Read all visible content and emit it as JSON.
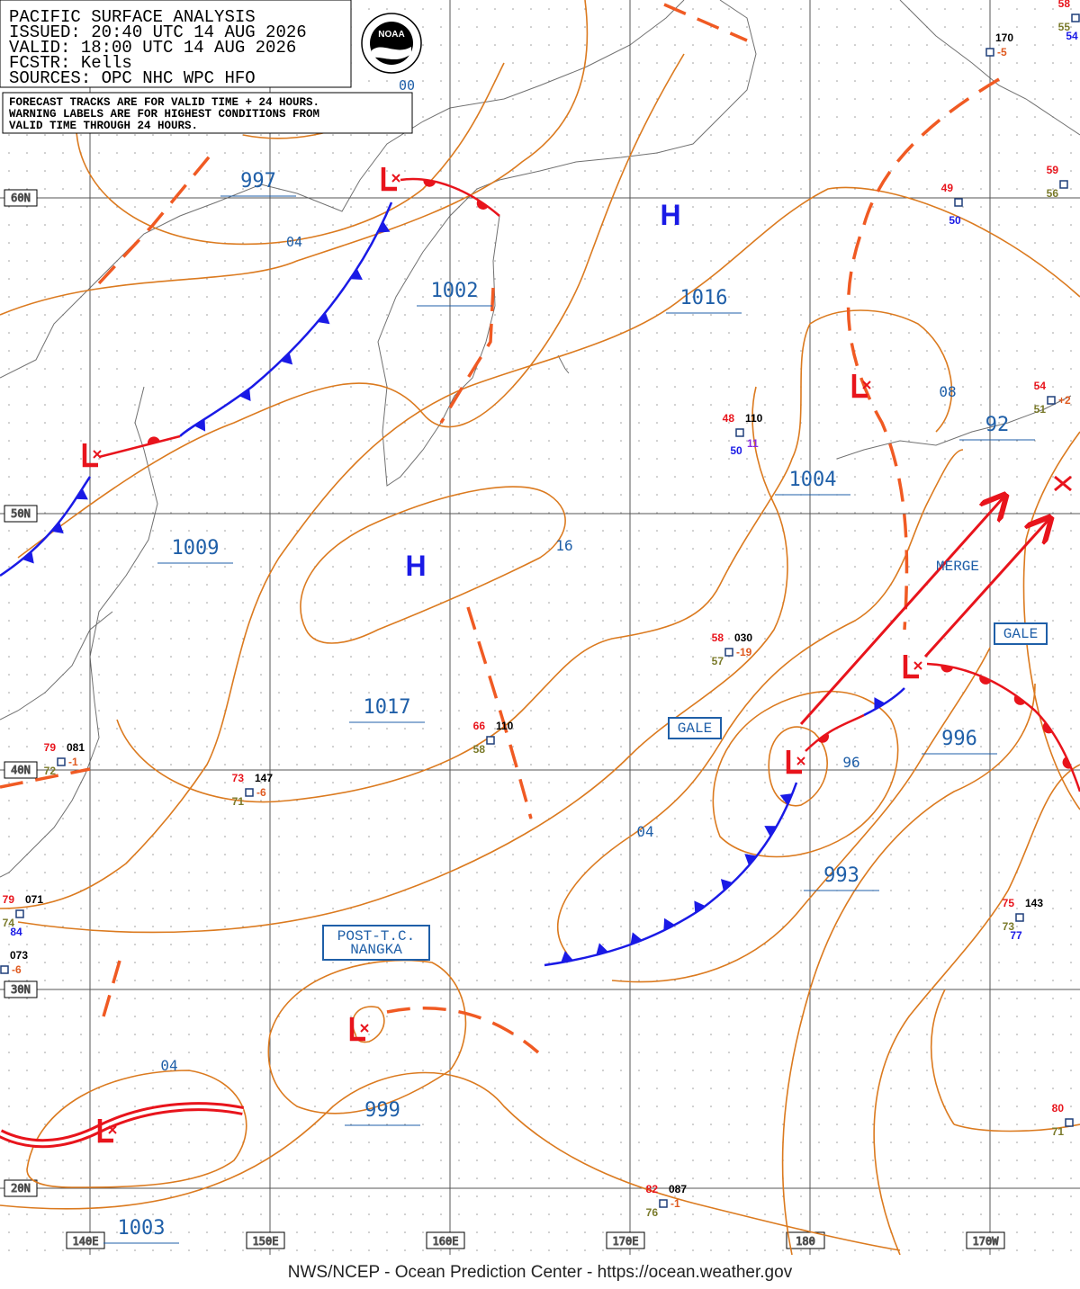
{
  "header": {
    "lines": [
      "PACIFIC SURFACE ANALYSIS",
      "ISSUED: 20:40 UTC 14 AUG 2026",
      "VALID:  18:00 UTC 14 AUG 2026",
      "FCSTR:  Kells",
      "SOURCES: OPC NHC WPC HFO"
    ],
    "logo": "NOAA"
  },
  "note": [
    "FORECAST TRACKS ARE FOR VALID TIME + 24 HOURS.",
    "WARNING LABELS ARE FOR HIGHEST CONDITIONS FROM",
    "VALID TIME THROUGH 24 HOURS."
  ],
  "longitudes": [
    "140E",
    "150E",
    "160E",
    "170E",
    "180",
    "170W"
  ],
  "latitudes": [
    "60N",
    "50N",
    "40N",
    "30N",
    "20N"
  ],
  "isobar_labels": [
    "00",
    "997",
    "04",
    "1002",
    "1016",
    "08",
    "92",
    "1004",
    "1009",
    "16",
    "1017",
    "996",
    "96",
    "04",
    "993",
    "04",
    "999",
    "1003"
  ],
  "highs": [
    "H",
    "H"
  ],
  "warnings": [
    "GALE",
    "GALE",
    "MERGE",
    "POST-T.C.\nNANGKA"
  ],
  "stations": [
    {
      "pres": "170",
      "tend": "-5"
    },
    {
      "temp": "58",
      "dew": "55",
      "wave": "54"
    },
    {
      "temp": "49",
      "wave": "50"
    },
    {
      "temp": "59",
      "dew": "56"
    },
    {
      "temp": "54",
      "dew": "51",
      "tend": "+2"
    },
    {
      "temp": "48",
      "pres": "110",
      "wave": "50",
      "vis": "11"
    },
    {
      "temp": "58",
      "pres": "030",
      "dew": "57",
      "tend": "-19"
    },
    {
      "temp": "66",
      "pres": "110",
      "dew": "58"
    },
    {
      "temp": "73",
      "pres": "147",
      "dew": "71",
      "tend": "-6"
    },
    {
      "temp": "79",
      "pres": "081",
      "dew": "72",
      "tend": "-1"
    },
    {
      "temp": "79",
      "pres": "071",
      "dew": "74",
      "wave": "84"
    },
    {
      "pres": "073",
      "tend": "-6"
    },
    {
      "temp": "75",
      "pres": "143",
      "dew": "73",
      "wave": "77"
    },
    {
      "temp": "80",
      "dew": "71"
    },
    {
      "temp": "82",
      "pres": "087",
      "dew": "76",
      "tend": "-1"
    }
  ],
  "footer": "NWS/NCEP - Ocean Prediction Center - https://ocean.weather.gov"
}
